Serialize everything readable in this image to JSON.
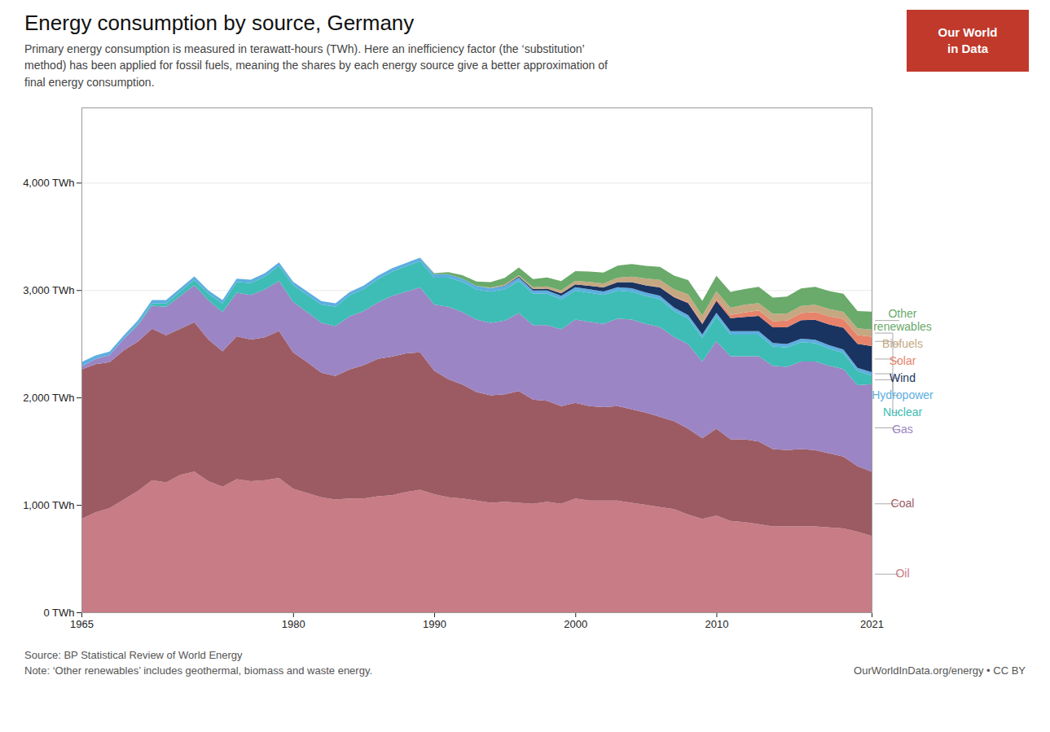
{
  "chart_data": {
    "type": "area",
    "stacked": true,
    "title": "Energy consumption by source, Germany",
    "subtitle": "Primary energy consumption is measured in terawatt-hours (TWh). Here an inefficiency factor (the ‘substitution’\nmethod) has been applied for fossil fuels, meaning the shares by each energy source give a better approximation of\nfinal energy consumption.",
    "source": "Source: BP Statistical Review of World Energy",
    "note": "Note: ‘Other renewables’ includes geothermal, biomass and waste energy.",
    "credit": "OurWorldInData.org/energy • CC BY",
    "logo": [
      "Our World",
      "in Data"
    ],
    "x": [
      1965,
      1966,
      1967,
      1968,
      1969,
      1970,
      1971,
      1972,
      1973,
      1974,
      1975,
      1976,
      1977,
      1978,
      1979,
      1980,
      1981,
      1982,
      1983,
      1984,
      1985,
      1986,
      1987,
      1988,
      1989,
      1990,
      1991,
      1992,
      1993,
      1994,
      1995,
      1996,
      1997,
      1998,
      1999,
      2000,
      2001,
      2002,
      2003,
      2004,
      2005,
      2006,
      2007,
      2008,
      2009,
      2010,
      2011,
      2012,
      2013,
      2014,
      2015,
      2016,
      2017,
      2018,
      2019,
      2020,
      2021
    ],
    "series": [
      {
        "name": "Oil",
        "color": "#c87c85",
        "values": [
          870,
          930,
          970,
          1050,
          1130,
          1230,
          1210,
          1280,
          1310,
          1220,
          1170,
          1240,
          1220,
          1230,
          1250,
          1150,
          1110,
          1070,
          1050,
          1060,
          1060,
          1080,
          1090,
          1120,
          1140,
          1100,
          1070,
          1060,
          1040,
          1020,
          1030,
          1020,
          1010,
          1030,
          1010,
          1060,
          1040,
          1040,
          1040,
          1020,
          1000,
          980,
          960,
          910,
          870,
          900,
          850,
          840,
          820,
          800,
          800,
          800,
          800,
          790,
          780,
          750,
          710
        ]
      },
      {
        "name": "Coal",
        "color": "#9c5b63",
        "values": [
          1390,
          1380,
          1360,
          1390,
          1390,
          1410,
          1370,
          1360,
          1390,
          1320,
          1260,
          1330,
          1320,
          1330,
          1370,
          1270,
          1220,
          1160,
          1150,
          1200,
          1240,
          1280,
          1290,
          1290,
          1280,
          1150,
          1100,
          1060,
          1010,
          1000,
          1000,
          1040,
          970,
          940,
          910,
          890,
          880,
          870,
          880,
          870,
          860,
          840,
          820,
          800,
          750,
          810,
          760,
          770,
          770,
          720,
          710,
          720,
          710,
          690,
          670,
          610,
          600
        ]
      },
      {
        "name": "Gas",
        "color": "#9b85c4",
        "values": [
          30,
          50,
          65,
          105,
          155,
          215,
          265,
          305,
          345,
          365,
          365,
          405,
          415,
          445,
          465,
          470,
          465,
          465,
          465,
          495,
          505,
          525,
          565,
          575,
          605,
          615,
          675,
          675,
          675,
          675,
          685,
          725,
          695,
          705,
          715,
          775,
          785,
          775,
          815,
          835,
          825,
          835,
          785,
          785,
          715,
          815,
          775,
          775,
          795,
          775,
          775,
          815,
          825,
          815,
          815,
          755,
          815
        ]
      },
      {
        "name": "Nuclear",
        "color": "#3dbdb5",
        "values": [
          0,
          0,
          0,
          0,
          10,
          20,
          30,
          40,
          50,
          60,
          80,
          100,
          110,
          120,
          140,
          155,
          160,
          170,
          180,
          195,
          205,
          215,
          225,
          235,
          245,
          250,
          270,
          280,
          280,
          290,
          290,
          300,
          290,
          290,
          280,
          270,
          270,
          270,
          260,
          260,
          260,
          260,
          240,
          240,
          220,
          230,
          200,
          200,
          200,
          180,
          180,
          180,
          170,
          160,
          150,
          130,
          80
        ]
      },
      {
        "name": "Hydropower",
        "color": "#5daee0",
        "values": [
          40,
          32,
          32,
          32,
          32,
          32,
          32,
          32,
          32,
          32,
          32,
          32,
          32,
          32,
          32,
          32,
          32,
          32,
          32,
          32,
          32,
          32,
          32,
          32,
          32,
          32,
          32,
          32,
          32,
          32,
          32,
          32,
          32,
          32,
          32,
          32,
          32,
          32,
          32,
          32,
          32,
          32,
          32,
          32,
          32,
          32,
          32,
          32,
          32,
          32,
          32,
          32,
          32,
          32,
          32,
          32,
          32
        ]
      },
      {
        "name": "Wind",
        "color": "#1a3461",
        "values": [
          0,
          0,
          0,
          0,
          0,
          0,
          0,
          0,
          0,
          0,
          0,
          0,
          0,
          0,
          0,
          0,
          0,
          0,
          0,
          0,
          0,
          0,
          0,
          0,
          0,
          0,
          0,
          0,
          0,
          0,
          5,
          10,
          12,
          16,
          22,
          26,
          32,
          37,
          47,
          57,
          67,
          77,
          97,
          112,
          97,
          112,
          122,
          132,
          142,
          147,
          157,
          172,
          187,
          192,
          202,
          222,
          242
        ]
      },
      {
        "name": "Solar",
        "color": "#e8836b",
        "values": [
          0,
          0,
          0,
          0,
          0,
          0,
          0,
          0,
          0,
          0,
          0,
          0,
          0,
          0,
          0,
          0,
          0,
          0,
          0,
          0,
          0,
          0,
          0,
          0,
          0,
          0,
          0,
          0,
          0,
          0,
          0,
          0,
          0,
          0,
          0,
          0,
          0,
          0,
          0,
          0,
          2,
          4,
          6,
          10,
          12,
          20,
          30,
          42,
          52,
          57,
          62,
          67,
          72,
          77,
          82,
          82,
          87
        ]
      },
      {
        "name": "Biofuels",
        "color": "#c5a882",
        "values": [
          0,
          0,
          0,
          0,
          0,
          0,
          0,
          0,
          0,
          0,
          0,
          0,
          0,
          0,
          0,
          0,
          0,
          0,
          0,
          0,
          0,
          0,
          0,
          0,
          0,
          0,
          0,
          0,
          0,
          5,
          10,
          12,
          17,
          22,
          27,
          32,
          37,
          37,
          42,
          52,
          62,
          67,
          67,
          72,
          67,
          72,
          67,
          72,
          67,
          67,
          67,
          67,
          67,
          67,
          67,
          62,
          67
        ]
      },
      {
        "name": "Other\nrenewables",
        "color": "#6aaa6a",
        "values": [
          0,
          0,
          0,
          0,
          0,
          0,
          0,
          0,
          0,
          0,
          0,
          0,
          0,
          0,
          0,
          0,
          0,
          0,
          0,
          0,
          0,
          0,
          0,
          0,
          0,
          10,
          20,
          32,
          42,
          52,
          62,
          72,
          77,
          82,
          87,
          92,
          97,
          102,
          112,
          117,
          117,
          122,
          127,
          132,
          137,
          142,
          147,
          147,
          152,
          152,
          157,
          162,
          167,
          167,
          167,
          162,
          167
        ]
      }
    ],
    "xlim": [
      1965,
      2021
    ],
    "xticks": [
      1965,
      1980,
      1990,
      2000,
      2010,
      2021
    ],
    "ylim": [
      0,
      4700
    ],
    "yticks": [
      {
        "value": 0,
        "label": "0 TWh"
      },
      {
        "value": 1000,
        "label": "1,000 TWh"
      },
      {
        "value": 2000,
        "label": "2,000 TWh"
      },
      {
        "value": 3000,
        "label": "3,000 TWh"
      },
      {
        "value": 4000,
        "label": "4,000 TWh"
      }
    ],
    "grid": true,
    "legend": "right"
  }
}
